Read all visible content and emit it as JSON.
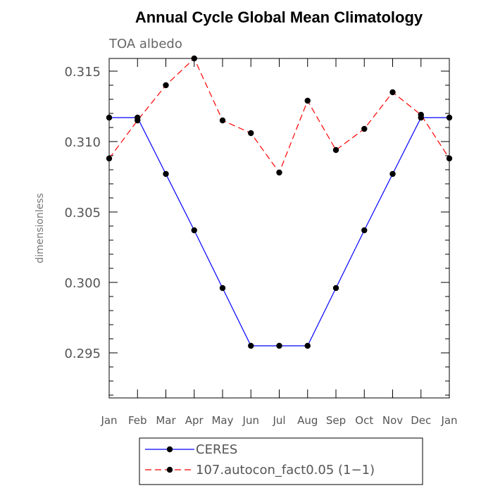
{
  "chart_data": {
    "type": "line",
    "title": "Annual Cycle Global Mean Climatology",
    "subtitle": "TOA albedo",
    "ylabel": "dimensionless",
    "xlabel": "",
    "categories": [
      "Jan",
      "Feb",
      "Mar",
      "Apr",
      "May",
      "Jun",
      "Jul",
      "Aug",
      "Sep",
      "Oct",
      "Nov",
      "Dec",
      "Jan"
    ],
    "ylim": [
      0.2918,
      0.3159
    ],
    "yticks": [
      0.295,
      0.3,
      0.305,
      0.31,
      0.315
    ],
    "ytick_labels": [
      "0.295",
      "0.300",
      "0.305",
      "0.310",
      "0.315"
    ],
    "series": [
      {
        "name": "CERES",
        "color": "#0000ff",
        "dash": "solid",
        "values": [
          0.3117,
          0.3117,
          0.3077,
          0.3037,
          0.2996,
          0.2955,
          0.2955,
          0.2955,
          0.2996,
          0.3037,
          0.3077,
          0.3117,
          0.3117
        ]
      },
      {
        "name": "107.autocon_fact0.05 (1−1)",
        "color": "#ff0000",
        "dash": "dashed",
        "values": [
          0.3088,
          0.3115,
          0.314,
          0.3159,
          0.3115,
          0.3106,
          0.3078,
          0.3129,
          0.3094,
          0.3109,
          0.3135,
          0.3119,
          0.3088
        ]
      }
    ],
    "grid": false,
    "legend_position": "bottom-center"
  }
}
